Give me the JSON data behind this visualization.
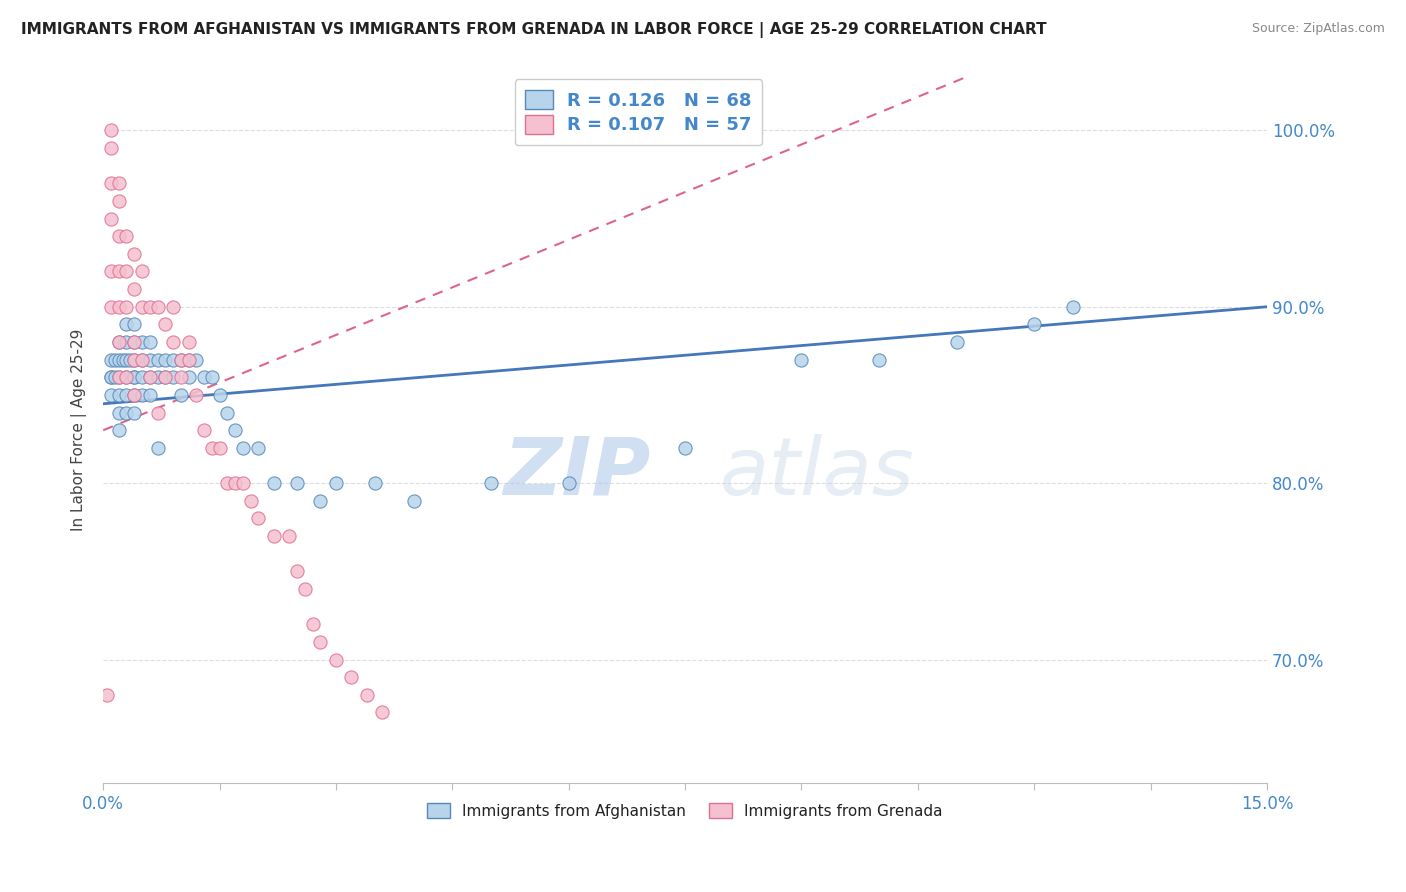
{
  "title": "IMMIGRANTS FROM AFGHANISTAN VS IMMIGRANTS FROM GRENADA IN LABOR FORCE | AGE 25-29 CORRELATION CHART",
  "source": "Source: ZipAtlas.com",
  "ylabel": "In Labor Force | Age 25-29",
  "xlim": [
    0.0,
    0.15
  ],
  "ylim": [
    0.63,
    1.03
  ],
  "xticks": [
    0.0,
    0.015,
    0.03,
    0.045,
    0.06,
    0.075,
    0.09,
    0.105,
    0.12,
    0.135,
    0.15
  ],
  "ytick_positions": [
    0.7,
    0.8,
    0.9,
    1.0
  ],
  "yticklabels": [
    "70.0%",
    "80.0%",
    "90.0%",
    "100.0%"
  ],
  "afghanistan_color": "#b8d4ea",
  "afghanistan_edge": "#5588bb",
  "grenada_color": "#f5c0d0",
  "grenada_edge": "#e07090",
  "trend_afghanistan_color": "#4477bb",
  "trend_grenada_color": "#dd6688",
  "R_afghanistan": 0.126,
  "N_afghanistan": 68,
  "R_grenada": 0.107,
  "N_grenada": 57,
  "legend_label_afghanistan": "Immigrants from Afghanistan",
  "legend_label_grenada": "Immigrants from Grenada",
  "watermark_zip": "ZIP",
  "watermark_atlas": "atlas",
  "grid_color": "#dddddd",
  "bg_color": "#ffffff",
  "afghanistan_x": [
    0.001,
    0.001,
    0.001,
    0.001,
    0.0015,
    0.0015,
    0.002,
    0.002,
    0.002,
    0.002,
    0.002,
    0.002,
    0.0025,
    0.003,
    0.003,
    0.003,
    0.003,
    0.003,
    0.003,
    0.0035,
    0.004,
    0.004,
    0.004,
    0.004,
    0.004,
    0.004,
    0.004,
    0.005,
    0.005,
    0.005,
    0.005,
    0.006,
    0.006,
    0.006,
    0.006,
    0.007,
    0.007,
    0.007,
    0.008,
    0.008,
    0.009,
    0.009,
    0.01,
    0.01,
    0.011,
    0.011,
    0.012,
    0.013,
    0.014,
    0.015,
    0.016,
    0.017,
    0.018,
    0.02,
    0.022,
    0.025,
    0.028,
    0.03,
    0.035,
    0.04,
    0.05,
    0.06,
    0.075,
    0.09,
    0.1,
    0.11,
    0.12,
    0.125
  ],
  "afghanistan_y": [
    0.86,
    0.87,
    0.86,
    0.85,
    0.87,
    0.86,
    0.88,
    0.87,
    0.86,
    0.85,
    0.84,
    0.83,
    0.87,
    0.89,
    0.88,
    0.87,
    0.86,
    0.85,
    0.84,
    0.87,
    0.89,
    0.88,
    0.87,
    0.86,
    0.85,
    0.84,
    0.86,
    0.88,
    0.87,
    0.86,
    0.85,
    0.88,
    0.87,
    0.86,
    0.85,
    0.87,
    0.86,
    0.82,
    0.87,
    0.86,
    0.87,
    0.86,
    0.87,
    0.85,
    0.87,
    0.86,
    0.87,
    0.86,
    0.86,
    0.85,
    0.84,
    0.83,
    0.82,
    0.82,
    0.8,
    0.8,
    0.79,
    0.8,
    0.8,
    0.79,
    0.8,
    0.8,
    0.82,
    0.87,
    0.87,
    0.88,
    0.89,
    0.9
  ],
  "grenada_x": [
    0.0005,
    0.001,
    0.001,
    0.001,
    0.001,
    0.001,
    0.001,
    0.002,
    0.002,
    0.002,
    0.002,
    0.002,
    0.002,
    0.002,
    0.003,
    0.003,
    0.003,
    0.003,
    0.004,
    0.004,
    0.004,
    0.004,
    0.004,
    0.005,
    0.005,
    0.005,
    0.006,
    0.006,
    0.007,
    0.007,
    0.008,
    0.008,
    0.009,
    0.009,
    0.01,
    0.01,
    0.011,
    0.011,
    0.012,
    0.013,
    0.014,
    0.015,
    0.016,
    0.017,
    0.018,
    0.019,
    0.02,
    0.022,
    0.024,
    0.025,
    0.026,
    0.027,
    0.028,
    0.03,
    0.032,
    0.034,
    0.036
  ],
  "grenada_y": [
    0.68,
    1.0,
    0.99,
    0.97,
    0.95,
    0.92,
    0.9,
    0.97,
    0.96,
    0.94,
    0.92,
    0.9,
    0.88,
    0.86,
    0.94,
    0.92,
    0.9,
    0.86,
    0.93,
    0.91,
    0.88,
    0.87,
    0.85,
    0.92,
    0.9,
    0.87,
    0.9,
    0.86,
    0.9,
    0.84,
    0.89,
    0.86,
    0.9,
    0.88,
    0.87,
    0.86,
    0.88,
    0.87,
    0.85,
    0.83,
    0.82,
    0.82,
    0.8,
    0.8,
    0.8,
    0.79,
    0.78,
    0.77,
    0.77,
    0.75,
    0.74,
    0.72,
    0.71,
    0.7,
    0.69,
    0.68,
    0.67
  ]
}
